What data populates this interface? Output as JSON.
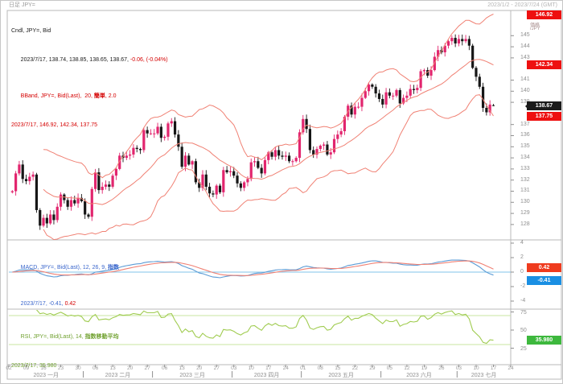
{
  "window": {
    "title_left": "日足 JPY=",
    "title_right": "2023/1/2 - 2023/7/24 (GMT)"
  },
  "main_panel": {
    "legend": {
      "line1": "Cndl, JPY=, Bid",
      "line2_black": "2023/7/17, 138.74, 138.85, 138.65, 138.67, ",
      "line2_red": "-0.06, (-0.04%)",
      "line3_prefix": "BBand, JPY=, Bid(Last),  20, ",
      "line3_bold": "簡単",
      "line3_suffix": ", 2.0",
      "line4": "2023/7/17, 146.92, 142.34, 137.75"
    },
    "axis": {
      "unit_line1": "価格",
      "unit_line2": "/JPY",
      "ticks": [
        145,
        144,
        143,
        141,
        140,
        139,
        137,
        136,
        135,
        134,
        133,
        132,
        131,
        130,
        129,
        128
      ]
    },
    "badges": {
      "bb_upper": "146.92",
      "bb_mid": "142.34",
      "last": "138.67",
      "bb_lower": "137.75"
    }
  },
  "macd_panel": {
    "legend": {
      "line1_prefix": "MACD, JPY=, Bid(Last), 12, 26, 9, ",
      "line1_bold": "指数",
      "line2_blue": "2023/7/17, -0.41, ",
      "line2_red": "0.42"
    },
    "axis": {
      "ticks": [
        4,
        2,
        0,
        -2,
        -4
      ]
    },
    "badges": {
      "signal": "0.42",
      "macd": "-0.41"
    }
  },
  "rsi_panel": {
    "legend": {
      "line1_prefix": "RSI, JPY=, Bid(Last), 14, ",
      "line1_bold": "指数移動平均",
      "line2": "2023/7/17, 35.980"
    },
    "axis": {
      "ticks": [
        75,
        50,
        25
      ]
    },
    "badges": {
      "rsi": "35.980"
    }
  },
  "x_axis": {
    "day_ticks": [
      {
        "bd": 0,
        "label": "02"
      },
      {
        "bd": 5,
        "label": "09"
      },
      {
        "bd": 10,
        "label": "16"
      },
      {
        "bd": 15,
        "label": "23"
      },
      {
        "bd": 20,
        "label": "30"
      },
      {
        "bd": 25,
        "label": "06"
      },
      {
        "bd": 30,
        "label": "13"
      },
      {
        "bd": 35,
        "label": "20"
      },
      {
        "bd": 40,
        "label": "27"
      },
      {
        "bd": 45,
        "label": "06"
      },
      {
        "bd": 50,
        "label": "13"
      },
      {
        "bd": 55,
        "label": "20"
      },
      {
        "bd": 60,
        "label": "27"
      },
      {
        "bd": 65,
        "label": "03"
      },
      {
        "bd": 70,
        "label": "10"
      },
      {
        "bd": 75,
        "label": "17"
      },
      {
        "bd": 80,
        "label": "24"
      },
      {
        "bd": 85,
        "label": "01"
      },
      {
        "bd": 90,
        "label": "08"
      },
      {
        "bd": 95,
        "label": "15"
      },
      {
        "bd": 100,
        "label": "22"
      },
      {
        "bd": 105,
        "label": "29"
      },
      {
        "bd": 110,
        "label": "05"
      },
      {
        "bd": 115,
        "label": "12"
      },
      {
        "bd": 120,
        "label": "19"
      },
      {
        "bd": 125,
        "label": "26"
      },
      {
        "bd": 130,
        "label": "03"
      },
      {
        "bd": 135,
        "label": "10"
      },
      {
        "bd": 140,
        "label": "17"
      },
      {
        "bd": 145,
        "label": "24"
      }
    ],
    "months": [
      {
        "label": "2023 一月",
        "from": 0,
        "to": 21.5
      },
      {
        "label": "2023 二月",
        "from": 21.5,
        "to": 41.5
      },
      {
        "label": "2023 三月",
        "from": 41.5,
        "to": 64.5
      },
      {
        "label": "2023 四月",
        "from": 64.5,
        "to": 84.5
      },
      {
        "label": "2023 五月",
        "from": 84.5,
        "to": 107.5
      },
      {
        "label": "2023 六月",
        "from": 107.5,
        "to": 129.5
      },
      {
        "label": "2023 七月",
        "from": 129.5,
        "to": 145
      }
    ]
  },
  "colors": {
    "candle_up": "#e2256e",
    "candle_down": "#161616",
    "bband": "#f08174",
    "macd_line": "#5b9bd5",
    "macd_signal": "#f08174",
    "macd_zero": "#82c3ea",
    "rsi_line": "#a0cc50",
    "rsi_band": "#c8e6a0",
    "frame": "#b8b8b8",
    "tick_text": "#8f8f8f"
  },
  "chart_data": {
    "type": "candlestick",
    "symbol": "JPY=",
    "quote": "Bid",
    "interval": "daily",
    "x_range": [
      "2023-01-03",
      "2023-07-17"
    ],
    "ylim_main": [
      126.5,
      147.2
    ],
    "closes": [
      131.0,
      132.6,
      133.4,
      132.1,
      131.9,
      132.3,
      132.5,
      129.3,
      127.9,
      128.6,
      128.1,
      128.9,
      128.4,
      129.6,
      130.7,
      130.2,
      129.6,
      130.2,
      129.9,
      130.4,
      130.1,
      128.9,
      128.7,
      131.2,
      132.7,
      131.1,
      131.4,
      131.6,
      131.4,
      132.4,
      133.0,
      134.2,
      134.0,
      134.2,
      134.3,
      134.9,
      134.8,
      134.7,
      136.5,
      136.2,
      136.2,
      136.2,
      136.8,
      135.8,
      135.9,
      137.1,
      137.3,
      136.1,
      135.0,
      133.2,
      134.2,
      133.4,
      133.7,
      131.8,
      131.3,
      132.5,
      131.4,
      130.8,
      130.7,
      131.5,
      130.9,
      132.9,
      132.7,
      132.8,
      132.4,
      131.7,
      131.3,
      131.8,
      132.1,
      133.6,
      133.7,
      133.1,
      132.6,
      133.8,
      134.5,
      134.1,
      134.7,
      134.2,
      134.1,
      134.2,
      133.7,
      133.7,
      134.0,
      136.3,
      137.5,
      136.6,
      134.7,
      134.3,
      134.8,
      135.1,
      135.2,
      134.3,
      134.5,
      135.7,
      136.1,
      136.4,
      137.7,
      138.7,
      137.9,
      138.6,
      138.6,
      139.4,
      140.0,
      140.6,
      140.4,
      139.8,
      139.3,
      138.8,
      139.9,
      139.6,
      139.6,
      140.1,
      138.9,
      139.4,
      139.6,
      140.2,
      140.1,
      140.3,
      141.8,
      141.9,
      141.4,
      141.9,
      143.1,
      143.7,
      143.5,
      144.1,
      144.5,
      144.8,
      144.3,
      144.7,
      144.5,
      144.7,
      144.1,
      142.1,
      141.3,
      140.4,
      138.5,
      138.1,
      138.8,
      138.67
    ],
    "last_candle": {
      "date": "2023/7/17",
      "open": 138.74,
      "high": 138.85,
      "low": 138.65,
      "close": 138.67,
      "change": -0.06,
      "change_pct": "-0.04%"
    },
    "bollinger": {
      "period": 20,
      "stdev": 2,
      "ma_type": "簡単",
      "last_upper": 146.92,
      "last_mid": 142.34,
      "last_lower": 137.75
    },
    "macd": {
      "fast": 12,
      "slow": 26,
      "signal": 9,
      "ma_type": "指数",
      "last_macd": -0.41,
      "last_signal": 0.42,
      "ylim": [
        -5,
        4.5
      ]
    },
    "rsi": {
      "period": 14,
      "ma_type": "指数移動平均",
      "last": 35.98,
      "upper_line": 70,
      "lower_line": 30,
      "ylim": [
        5,
        80
      ]
    }
  }
}
